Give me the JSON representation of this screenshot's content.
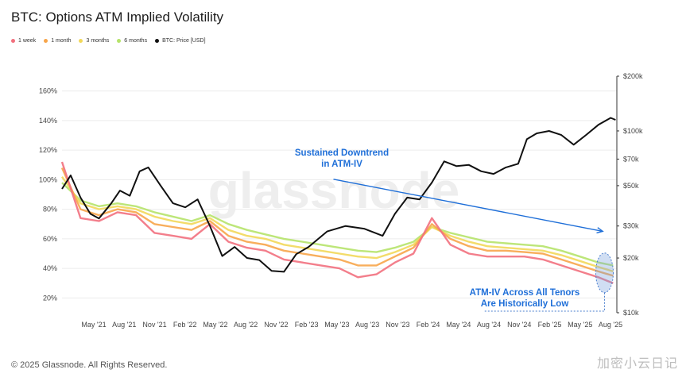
{
  "title": "BTC: Options ATM Implied Volatility",
  "copyright": "© 2025 Glassnode. All Rights Reserved.",
  "watermark_text": "加密小云日记",
  "colors": {
    "w1": "#f2707e",
    "m1": "#f7a54a",
    "m3": "#f2d85a",
    "m6": "#b6e36a",
    "price": "#111111",
    "annotation": "#1f6fd8"
  },
  "chart_data": {
    "type": "line",
    "legend_position": "top-left",
    "grid": true,
    "legend": [
      {
        "label": "1 week",
        "color": "#f2707e"
      },
      {
        "label": "1 month",
        "color": "#f7a54a"
      },
      {
        "label": "3 months",
        "color": "#f2d85a"
      },
      {
        "label": "6 months",
        "color": "#b6e36a"
      },
      {
        "label": "BTC: Price [USD]",
        "color": "#111111"
      }
    ],
    "x_ticks": [
      "May '21",
      "Aug '21",
      "Nov '21",
      "Feb '22",
      "May '22",
      "Aug '22",
      "Nov '22",
      "Feb '23",
      "May '23",
      "Aug '23",
      "Nov '23",
      "Feb '24",
      "May '24",
      "Aug '24",
      "Nov '24",
      "Feb '25",
      "May '25",
      "Aug '25"
    ],
    "y_left_ticks": [
      "20%",
      "40%",
      "60%",
      "80%",
      "100%",
      "120%",
      "140%",
      "160%"
    ],
    "y_left_range": [
      10,
      170
    ],
    "y_right_ticks": [
      "$10k",
      "$20k",
      "$30k",
      "$50k",
      "$70k",
      "$100k",
      "$200k"
    ],
    "y_right_tick_values": [
      10000,
      20000,
      30000,
      50000,
      70000,
      100000,
      200000
    ],
    "y_right_range": [
      10000,
      200000
    ],
    "y_right_scale": "log",
    "x_range": [
      2021.15,
      2025.65
    ],
    "series": [
      {
        "key": "iv6m",
        "name": "6 months",
        "x": [
          2021.15,
          2021.3,
          2021.45,
          2021.6,
          2021.75,
          2021.9,
          2022.05,
          2022.2,
          2022.35,
          2022.5,
          2022.65,
          2022.8,
          2022.95,
          2023.1,
          2023.25,
          2023.4,
          2023.55,
          2023.7,
          2023.85,
          2024.0,
          2024.15,
          2024.3,
          2024.45,
          2024.6,
          2024.75,
          2024.9,
          2025.05,
          2025.2,
          2025.35,
          2025.5,
          2025.62
        ],
        "values": [
          98,
          86,
          82,
          84,
          82,
          78,
          75,
          72,
          76,
          70,
          66,
          63,
          60,
          58,
          56,
          54,
          52,
          51,
          54,
          58,
          68,
          64,
          61,
          58,
          57,
          56,
          55,
          52,
          48,
          44,
          42
        ]
      },
      {
        "key": "iv3m",
        "name": "3 months",
        "x": [
          2021.15,
          2021.3,
          2021.45,
          2021.6,
          2021.75,
          2021.9,
          2022.05,
          2022.2,
          2022.35,
          2022.5,
          2022.65,
          2022.8,
          2022.95,
          2023.1,
          2023.25,
          2023.4,
          2023.55,
          2023.7,
          2023.85,
          2024.0,
          2024.15,
          2024.3,
          2024.45,
          2024.6,
          2024.75,
          2024.9,
          2025.05,
          2025.2,
          2025.35,
          2025.5,
          2025.62
        ],
        "values": [
          102,
          84,
          80,
          82,
          80,
          75,
          72,
          70,
          74,
          66,
          62,
          60,
          56,
          54,
          52,
          50,
          48,
          47,
          51,
          56,
          68,
          62,
          58,
          55,
          54,
          53,
          52,
          49,
          45,
          41,
          38
        ]
      },
      {
        "key": "iv1m",
        "name": "1 month",
        "x": [
          2021.15,
          2021.3,
          2021.45,
          2021.6,
          2021.75,
          2021.9,
          2022.05,
          2022.2,
          2022.35,
          2022.5,
          2022.65,
          2022.8,
          2022.95,
          2023.1,
          2023.25,
          2023.4,
          2023.55,
          2023.7,
          2023.85,
          2024.0,
          2024.15,
          2024.3,
          2024.45,
          2024.6,
          2024.75,
          2024.9,
          2025.05,
          2025.2,
          2025.35,
          2025.5,
          2025.62
        ],
        "values": [
          108,
          80,
          76,
          80,
          78,
          70,
          68,
          66,
          72,
          62,
          58,
          56,
          52,
          50,
          48,
          46,
          42,
          42,
          48,
          54,
          70,
          60,
          55,
          52,
          52,
          51,
          50,
          46,
          42,
          38,
          35
        ]
      },
      {
        "key": "iv1w",
        "name": "1 week",
        "x": [
          2021.15,
          2021.3,
          2021.45,
          2021.6,
          2021.75,
          2021.9,
          2022.05,
          2022.2,
          2022.35,
          2022.5,
          2022.65,
          2022.8,
          2022.95,
          2023.1,
          2023.25,
          2023.4,
          2023.55,
          2023.7,
          2023.85,
          2024.0,
          2024.15,
          2024.3,
          2024.45,
          2024.6,
          2024.75,
          2024.9,
          2025.05,
          2025.2,
          2025.35,
          2025.5,
          2025.62
        ],
        "values": [
          112,
          74,
          72,
          78,
          76,
          64,
          62,
          60,
          70,
          58,
          54,
          52,
          46,
          44,
          42,
          40,
          34,
          36,
          44,
          50,
          74,
          56,
          50,
          48,
          48,
          48,
          46,
          42,
          38,
          34,
          30
        ]
      },
      {
        "key": "price",
        "name": "BTC: Price [USD]",
        "axis": "right",
        "x": [
          2021.15,
          2021.22,
          2021.3,
          2021.38,
          2021.45,
          2021.55,
          2021.62,
          2021.7,
          2021.78,
          2021.85,
          2021.95,
          2022.05,
          2022.15,
          2022.25,
          2022.35,
          2022.45,
          2022.55,
          2022.65,
          2022.75,
          2022.85,
          2022.95,
          2023.05,
          2023.15,
          2023.3,
          2023.45,
          2023.6,
          2023.75,
          2023.85,
          2023.95,
          2024.05,
          2024.15,
          2024.25,
          2024.35,
          2024.45,
          2024.55,
          2024.65,
          2024.75,
          2024.85,
          2024.92,
          2025.0,
          2025.1,
          2025.2,
          2025.3,
          2025.4,
          2025.5,
          2025.6,
          2025.64
        ],
        "values": [
          48000,
          57000,
          43000,
          35000,
          33000,
          40000,
          47000,
          44000,
          60000,
          63000,
          50000,
          40000,
          38000,
          42000,
          30000,
          20500,
          23000,
          20000,
          19500,
          17000,
          16800,
          21000,
          23000,
          28000,
          30000,
          29000,
          26500,
          35000,
          43000,
          42000,
          52000,
          68000,
          64000,
          65000,
          60000,
          58000,
          63000,
          66000,
          90000,
          97000,
          100000,
          95000,
          84000,
          95000,
          108000,
          118000,
          115000
        ]
      }
    ],
    "annotations": [
      {
        "text_lines": [
          "Sustained Downtrend",
          "in ATM-IV"
        ],
        "from": [
          2023.3,
          96
        ],
        "to": [
          2025.6,
          64
        ]
      },
      {
        "text_lines": [
          "ATM-IV Across All Tenors",
          "Are Historically Low"
        ],
        "ellipse_center": [
          2025.55,
          37
        ]
      }
    ]
  }
}
